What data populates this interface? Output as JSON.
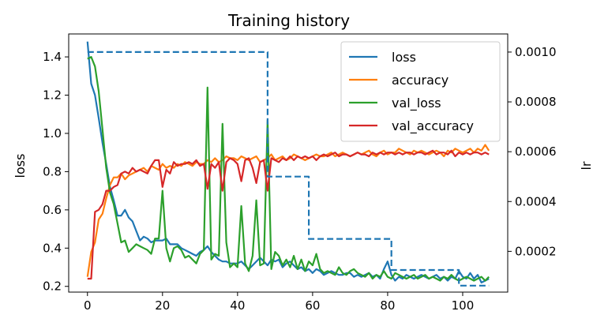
{
  "chart_data": {
    "type": "line",
    "title": "Training history",
    "xlabel": "",
    "ylabel": "loss",
    "y2label": "lr",
    "xlim": [
      -5,
      112
    ],
    "ylim": [
      0.17,
      1.52
    ],
    "y2lim": [
      3.64e-05,
      0.0010727
    ],
    "xticks": [
      0,
      20,
      40,
      60,
      80,
      100
    ],
    "yticks": [
      0.2,
      0.4,
      0.6,
      0.8,
      1.0,
      1.2,
      1.4
    ],
    "ytick_labels": [
      "0.2",
      "0.4",
      "0.6",
      "0.8",
      "1.0",
      "1.2",
      "1.4"
    ],
    "y2ticks": [
      0.0002,
      0.0004,
      0.0006,
      0.0008,
      0.001
    ],
    "y2tick_labels": [
      "0.0002",
      "0.0004",
      "0.0006",
      "0.0008",
      "0.0010"
    ],
    "grid": false,
    "legend_position": "top-right",
    "colors": {
      "loss": "#1f77b4",
      "accuracy": "#ff7f0e",
      "val_loss": "#2ca02c",
      "val_accuracy": "#d62728",
      "lr": "#1f77b4"
    },
    "series": [
      {
        "name": "loss",
        "axis": "left",
        "values": [
          1.48,
          1.26,
          1.2,
          1.08,
          0.95,
          0.84,
          0.72,
          0.65,
          0.57,
          0.57,
          0.6,
          0.56,
          0.54,
          0.49,
          0.44,
          0.46,
          0.45,
          0.43,
          0.44,
          0.44,
          0.44,
          0.45,
          0.42,
          0.42,
          0.42,
          0.4,
          0.39,
          0.38,
          0.37,
          0.36,
          0.38,
          0.39,
          0.41,
          0.38,
          0.36,
          0.34,
          0.33,
          0.33,
          0.32,
          0.32,
          0.32,
          0.33,
          0.31,
          0.29,
          0.31,
          0.33,
          0.35,
          0.33,
          0.31,
          0.34,
          0.33,
          0.34,
          0.3,
          0.32,
          0.33,
          0.31,
          0.29,
          0.3,
          0.28,
          0.29,
          0.27,
          0.29,
          0.28,
          0.26,
          0.27,
          0.28,
          0.27,
          0.26,
          0.26,
          0.27,
          0.27,
          0.25,
          0.26,
          0.25,
          0.26,
          0.27,
          0.25,
          0.26,
          0.24,
          0.29,
          0.33,
          0.26,
          0.23,
          0.25,
          0.24,
          0.26,
          0.25,
          0.24,
          0.25,
          0.26,
          0.25,
          0.24,
          0.25,
          0.26,
          0.24,
          0.25,
          0.23,
          0.25,
          0.24,
          0.28,
          0.25,
          0.24,
          0.27,
          0.24,
          0.26,
          0.22,
          0.23,
          0.24
        ]
      },
      {
        "name": "accuracy",
        "axis": "left",
        "values": [
          0.25,
          0.38,
          0.43,
          0.55,
          0.58,
          0.66,
          0.73,
          0.77,
          0.77,
          0.79,
          0.76,
          0.78,
          0.79,
          0.8,
          0.81,
          0.82,
          0.8,
          0.83,
          0.82,
          0.81,
          0.84,
          0.82,
          0.83,
          0.82,
          0.84,
          0.83,
          0.85,
          0.84,
          0.83,
          0.85,
          0.84,
          0.84,
          0.86,
          0.85,
          0.87,
          0.85,
          0.86,
          0.88,
          0.87,
          0.87,
          0.86,
          0.88,
          0.87,
          0.86,
          0.87,
          0.88,
          0.85,
          0.86,
          0.87,
          0.89,
          0.86,
          0.87,
          0.88,
          0.86,
          0.87,
          0.89,
          0.88,
          0.87,
          0.86,
          0.87,
          0.88,
          0.89,
          0.88,
          0.88,
          0.89,
          0.9,
          0.88,
          0.89,
          0.9,
          0.89,
          0.88,
          0.89,
          0.9,
          0.89,
          0.9,
          0.91,
          0.89,
          0.88,
          0.9,
          0.91,
          0.89,
          0.9,
          0.9,
          0.92,
          0.91,
          0.9,
          0.89,
          0.91,
          0.9,
          0.91,
          0.9,
          0.89,
          0.9,
          0.91,
          0.9,
          0.88,
          0.91,
          0.9,
          0.92,
          0.91,
          0.9,
          0.91,
          0.92,
          0.9,
          0.92,
          0.91,
          0.94,
          0.91
        ]
      },
      {
        "name": "val_loss",
        "axis": "left",
        "values": [
          1.39,
          1.4,
          1.35,
          1.22,
          1.02,
          0.82,
          0.69,
          0.63,
          0.53,
          0.43,
          0.44,
          0.38,
          0.4,
          0.42,
          0.41,
          0.4,
          0.39,
          0.37,
          0.45,
          0.45,
          0.7,
          0.4,
          0.33,
          0.4,
          0.41,
          0.39,
          0.35,
          0.36,
          0.34,
          0.32,
          0.37,
          0.39,
          1.24,
          0.34,
          0.37,
          0.36,
          1.05,
          0.43,
          0.3,
          0.32,
          0.3,
          0.62,
          0.32,
          0.28,
          0.36,
          0.65,
          0.31,
          0.32,
          1.07,
          0.29,
          0.38,
          0.36,
          0.31,
          0.34,
          0.3,
          0.36,
          0.29,
          0.34,
          0.28,
          0.33,
          0.31,
          0.37,
          0.29,
          0.27,
          0.28,
          0.27,
          0.26,
          0.3,
          0.27,
          0.26,
          0.28,
          0.29,
          0.27,
          0.26,
          0.25,
          0.27,
          0.24,
          0.26,
          0.25,
          0.28,
          0.25,
          0.24,
          0.27,
          0.26,
          0.25,
          0.24,
          0.25,
          0.26,
          0.24,
          0.25,
          0.26,
          0.24,
          0.25,
          0.24,
          0.23,
          0.25,
          0.24,
          0.26,
          0.24,
          0.23,
          0.24,
          0.25,
          0.24,
          0.23,
          0.24,
          0.25,
          0.23,
          0.25
        ]
      },
      {
        "name": "val_accuracy",
        "axis": "left",
        "values": [
          0.24,
          0.24,
          0.59,
          0.6,
          0.63,
          0.7,
          0.7,
          0.72,
          0.73,
          0.79,
          0.8,
          0.79,
          0.82,
          0.8,
          0.81,
          0.8,
          0.79,
          0.83,
          0.86,
          0.86,
          0.72,
          0.81,
          0.79,
          0.85,
          0.83,
          0.84,
          0.84,
          0.85,
          0.84,
          0.86,
          0.83,
          0.84,
          0.71,
          0.84,
          0.82,
          0.85,
          0.7,
          0.85,
          0.87,
          0.86,
          0.84,
          0.75,
          0.86,
          0.87,
          0.82,
          0.74,
          0.85,
          0.86,
          0.7,
          0.87,
          0.86,
          0.85,
          0.87,
          0.86,
          0.88,
          0.86,
          0.88,
          0.87,
          0.88,
          0.87,
          0.88,
          0.86,
          0.88,
          0.89,
          0.88,
          0.89,
          0.9,
          0.88,
          0.89,
          0.89,
          0.88,
          0.89,
          0.9,
          0.89,
          0.89,
          0.88,
          0.9,
          0.89,
          0.9,
          0.89,
          0.9,
          0.9,
          0.89,
          0.9,
          0.89,
          0.9,
          0.9,
          0.89,
          0.9,
          0.9,
          0.89,
          0.9,
          0.91,
          0.89,
          0.9,
          0.9,
          0.89,
          0.91,
          0.88,
          0.9,
          0.89,
          0.9,
          0.89,
          0.9,
          0.9,
          0.89,
          0.9,
          0.89
        ]
      },
      {
        "name": "lr",
        "axis": "right",
        "legend": false,
        "style": "dashed",
        "steps": [
          {
            "x_start": 0,
            "x_end": 48,
            "value": 0.001
          },
          {
            "x_start": 48,
            "x_end": 59,
            "value": 0.0005
          },
          {
            "x_start": 59,
            "x_end": 81,
            "value": 0.00025
          },
          {
            "x_start": 81,
            "x_end": 99,
            "value": 0.000125
          },
          {
            "x_start": 99,
            "x_end": 107,
            "value": 6.25e-05
          }
        ]
      }
    ]
  }
}
